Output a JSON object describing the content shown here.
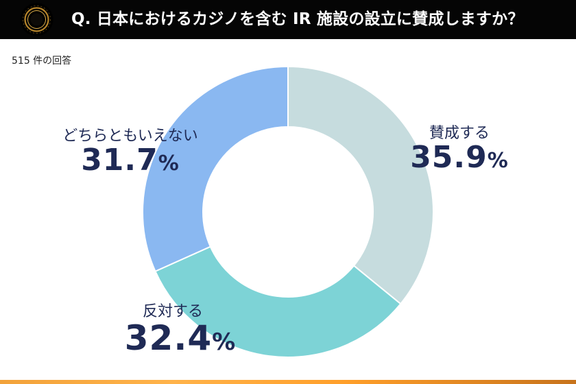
{
  "header": {
    "title": "Q. 日本におけるカジノを含む IR 施設の設立に賛成しますか？",
    "background": "#050505",
    "logo_icon": "gold-ring-logo-icon"
  },
  "responses_text": "515 件の回答",
  "chart_data": {
    "type": "pie",
    "donut": true,
    "categories": [
      "賛成する",
      "反対する",
      "どちらともいえない"
    ],
    "values": [
      35.9,
      32.4,
      31.7
    ],
    "value_labels": [
      "35.9",
      "32.4",
      "31.7"
    ],
    "unit": "%",
    "colors": [
      "#c6dcde",
      "#7dd3d6",
      "#8ab8f1"
    ],
    "start": "top, clockwise"
  }
}
